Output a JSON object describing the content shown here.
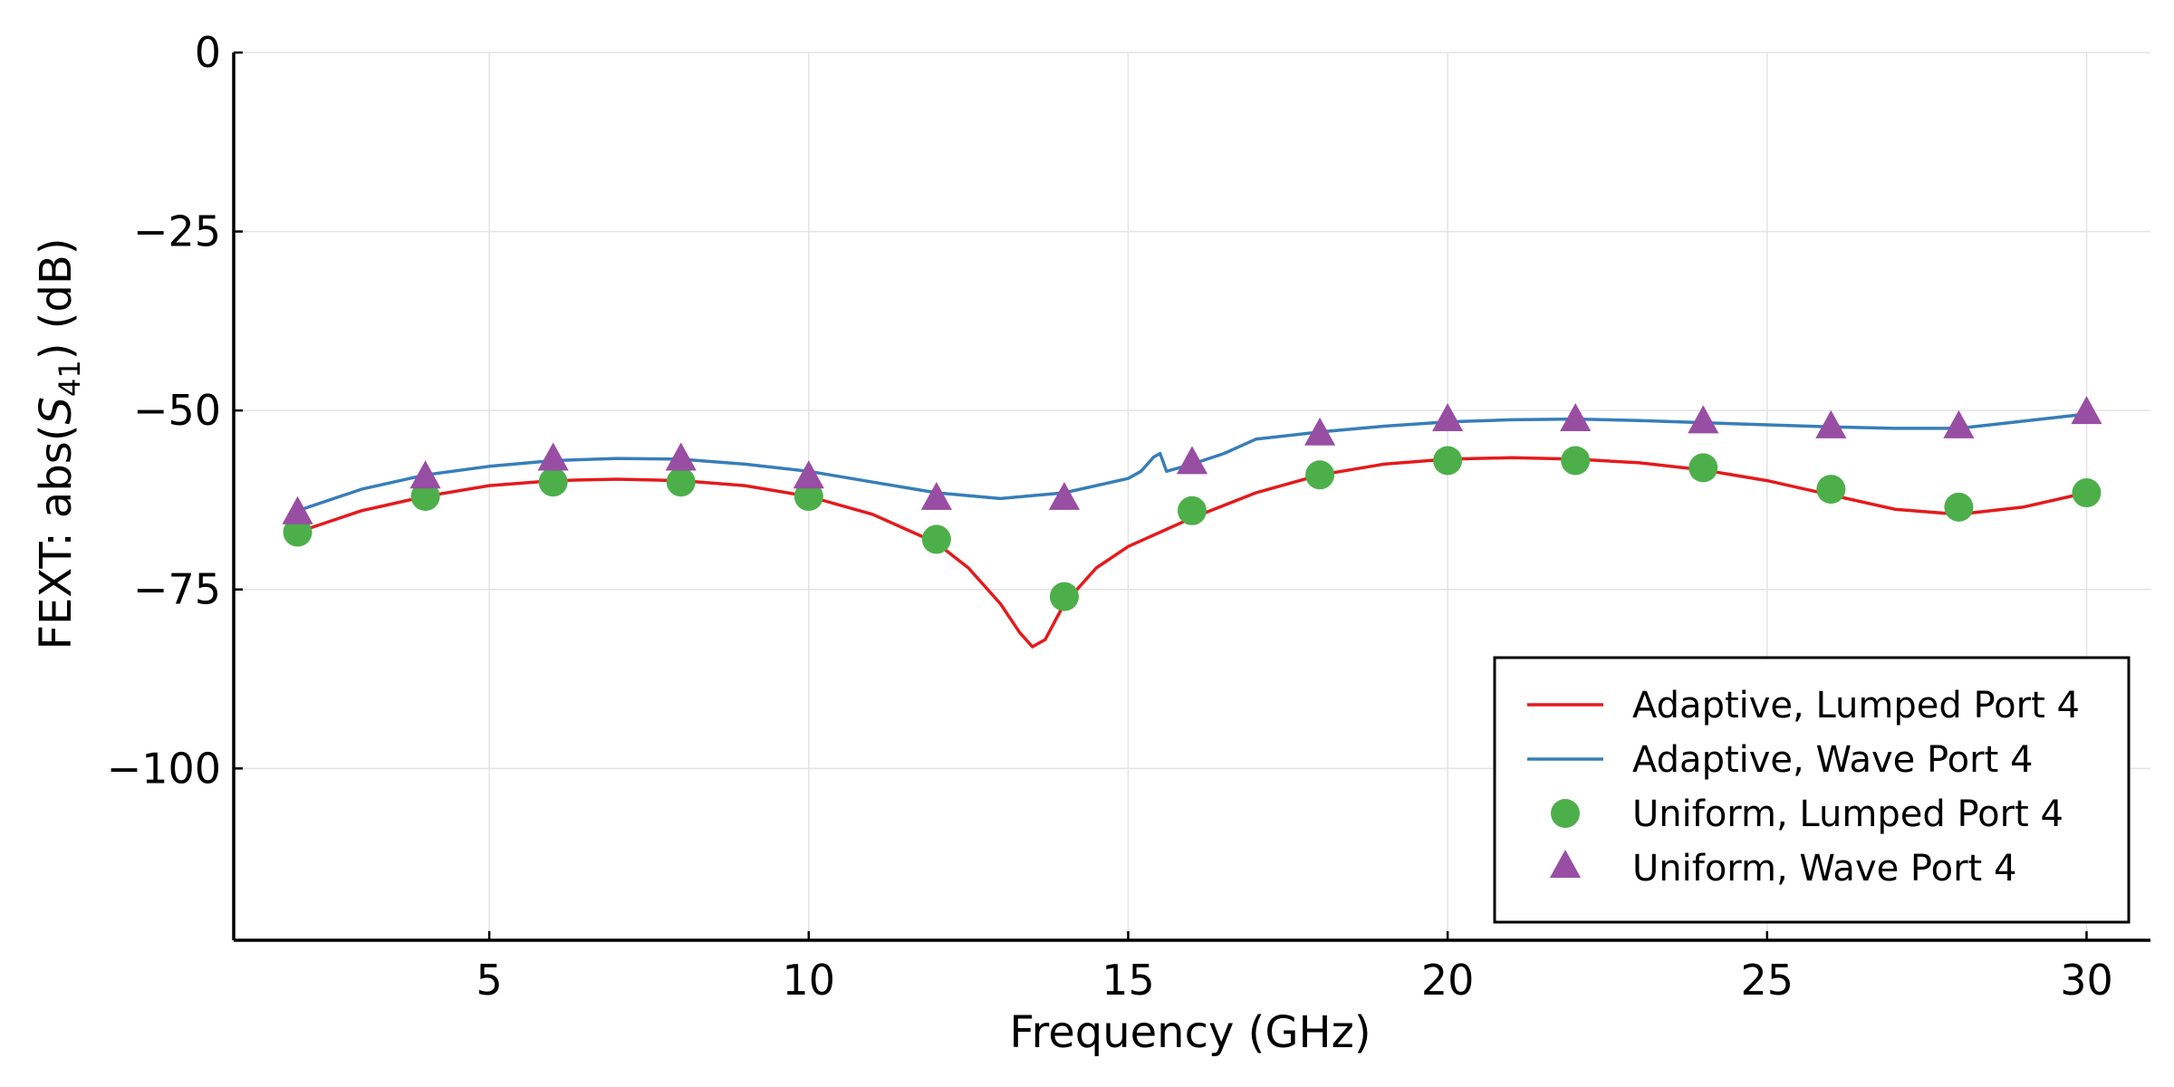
{
  "chart_data": {
    "type": "line",
    "title": "",
    "xlabel": "Frequency  (GHz)",
    "ylabel": {
      "prefix": "FEXT: abs(",
      "var": "S",
      "sub": "41",
      "suffix": ")  (dB)"
    },
    "xlim": [
      1,
      31
    ],
    "ylim": [
      -124,
      0
    ],
    "xticks": [
      5,
      10,
      15,
      20,
      25,
      30
    ],
    "xtick_labels": [
      "5",
      "10",
      "15",
      "20",
      "25",
      "30"
    ],
    "yticks": [
      0,
      -25,
      -50,
      -75,
      -100
    ],
    "ytick_labels": [
      "0",
      "−25",
      "−50",
      "−75",
      "−100"
    ],
    "grid": true,
    "legend_position": "lower-right",
    "series": [
      {
        "name": "Adaptive, Lumped Port 4",
        "kind": "line",
        "color": "#e41a1c",
        "x": [
          2,
          3,
          4,
          5,
          6,
          7,
          8,
          9,
          10,
          11,
          12,
          12.5,
          13,
          13.3,
          13.5,
          13.7,
          14,
          14.5,
          15,
          16,
          17,
          18,
          19,
          20,
          21,
          22,
          23,
          24,
          25,
          26,
          27,
          28,
          29,
          30
        ],
        "y": [
          -67,
          -64,
          -62,
          -60.5,
          -59.8,
          -59.6,
          -59.8,
          -60.5,
          -62,
          -64.5,
          -68.5,
          -72,
          -77,
          -81,
          -83,
          -82,
          -77,
          -72,
          -69,
          -65,
          -61.5,
          -59,
          -57.5,
          -56.8,
          -56.6,
          -56.8,
          -57.3,
          -58.3,
          -59.8,
          -61.8,
          -63.8,
          -64.5,
          -63.5,
          -61.5
        ]
      },
      {
        "name": "Adaptive, Wave Port 4",
        "kind": "line",
        "color": "#377eb8",
        "x": [
          2,
          3,
          4,
          5,
          6,
          7,
          8,
          9,
          10,
          11,
          12,
          13,
          14,
          15,
          15.2,
          15.4,
          15.5,
          15.6,
          16,
          16.5,
          17,
          18,
          19,
          20,
          21,
          22,
          23,
          24,
          25,
          26,
          27,
          28,
          29,
          30
        ],
        "y": [
          -64,
          -61,
          -59,
          -57.8,
          -57,
          -56.7,
          -56.8,
          -57.5,
          -58.5,
          -60,
          -61.5,
          -62.3,
          -61.5,
          -59.5,
          -58.5,
          -56.5,
          -56,
          -58.5,
          -57.5,
          -56,
          -54,
          -53,
          -52.2,
          -51.6,
          -51.3,
          -51.2,
          -51.4,
          -51.7,
          -52,
          -52.3,
          -52.5,
          -52.5,
          -51.5,
          -50.5
        ]
      },
      {
        "name": "Uniform, Lumped Port 4",
        "kind": "circle",
        "color": "#4daf4a",
        "x": [
          2,
          4,
          6,
          8,
          10,
          12,
          14,
          16,
          18,
          20,
          22,
          24,
          26,
          28,
          30
        ],
        "y": [
          -67,
          -62,
          -60,
          -60,
          -62,
          -68,
          -76,
          -64,
          -59,
          -57,
          -57,
          -58,
          -61,
          -63.5,
          -61.5
        ]
      },
      {
        "name": "Uniform, Wave Port 4",
        "kind": "triangle",
        "color": "#984ea3",
        "x": [
          2,
          4,
          6,
          8,
          10,
          12,
          14,
          16,
          18,
          20,
          22,
          24,
          26,
          28,
          30
        ],
        "y": [
          -64.5,
          -59.5,
          -57,
          -57,
          -59.5,
          -62.5,
          -62.5,
          -57.5,
          -53.5,
          -51.5,
          -51.5,
          -51.8,
          -52.5,
          -52.5,
          -50.5
        ]
      }
    ]
  }
}
